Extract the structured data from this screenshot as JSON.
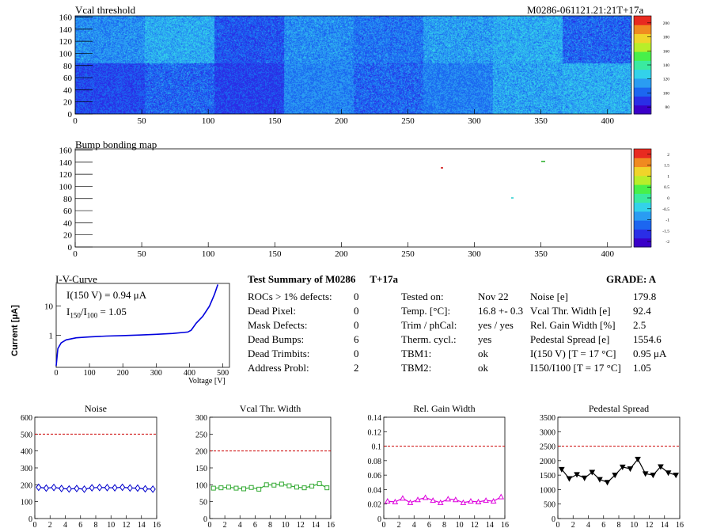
{
  "vcal_map": {
    "title": "Vcal threshold",
    "module_label": "M0286-061121.21:21T+17a",
    "x_ticks": [
      "0",
      "50",
      "100",
      "150",
      "200",
      "250",
      "300",
      "350",
      "400"
    ],
    "y_ticks": [
      "0",
      "20",
      "40",
      "60",
      "80",
      "100",
      "120",
      "140",
      "160"
    ],
    "palette_ticks": [
      "80",
      "100",
      "120",
      "140",
      "160",
      "180",
      "200"
    ]
  },
  "bump_map": {
    "title": "Bump bonding map",
    "x_ticks": [
      "0",
      "50",
      "100",
      "150",
      "200",
      "250",
      "300",
      "350",
      "400"
    ],
    "y_ticks": [
      "0",
      "20",
      "40",
      "60",
      "80",
      "100",
      "120",
      "140",
      "160"
    ],
    "palette_ticks": [
      "-2",
      "-1.5",
      "-1",
      "-0.5",
      "0",
      "0.5",
      "1",
      "1.5",
      "2"
    ]
  },
  "iv_curve": {
    "title": "I-V-Curve",
    "annotation_1": "I(150 V) = 0.94 μA",
    "annotation_2_main": "I",
    "annotation_2_sub1": "150",
    "annotation_2_mid": "/I",
    "annotation_2_sub2": "100",
    "annotation_2_val": "=  1.05",
    "ylabel": "Current [μA]",
    "xlabel": "Voltage [V]",
    "x_ticks": [
      "0",
      "100",
      "200",
      "300",
      "400",
      "500"
    ],
    "y_ticks": [
      "1",
      "10"
    ]
  },
  "summary": {
    "title": "Test Summary of M0286",
    "tag": "T+17a",
    "grade_label": "GRADE:  A",
    "left_rows": [
      {
        "label": "ROCs > 1% defects:",
        "value": "0"
      },
      {
        "label": "Dead Pixel:",
        "value": "0"
      },
      {
        "label": "Mask Defects:",
        "value": "0"
      },
      {
        "label": "Dead Bumps:",
        "value": "6"
      },
      {
        "label": "Dead Trimbits:",
        "value": "0"
      },
      {
        "label": "Address Probl:",
        "value": "2"
      }
    ],
    "mid_rows": [
      {
        "label": "Tested on:",
        "value": "Nov 22"
      },
      {
        "label": "Temp. [°C]:",
        "value": "16.8 +- 0.3"
      },
      {
        "label": "Trim / phCal:",
        "value": "yes / yes"
      },
      {
        "label": "Therm. cycl.:",
        "value": "yes"
      },
      {
        "label": "TBM1:",
        "value": "ok"
      },
      {
        "label": "TBM2:",
        "value": "ok"
      }
    ],
    "right_rows": [
      {
        "label": "Noise [e]",
        "value": "179.8"
      },
      {
        "label": "Vcal Thr. Width [e]",
        "value": "92.4"
      },
      {
        "label": "Rel. Gain Width [%]",
        "value": "2.5"
      },
      {
        "label": "Pedestal Spread [e]",
        "value": "1554.6"
      },
      {
        "label": "I(150 V) [T = 17 °C]",
        "value": "0.95 μA"
      },
      {
        "label": "I150/I100  [T = 17 °C]",
        "value": "1.05"
      }
    ]
  },
  "chart_data": [
    {
      "type": "line",
      "title": "Noise",
      "x": [
        0,
        1,
        2,
        3,
        4,
        5,
        6,
        7,
        8,
        9,
        10,
        11,
        12,
        13,
        14,
        15
      ],
      "values": [
        185,
        180,
        184,
        178,
        175,
        178,
        174,
        182,
        184,
        183,
        182,
        185,
        181,
        180,
        176,
        174
      ],
      "ylim": [
        0,
        600
      ],
      "xlim": [
        0,
        16
      ],
      "threshold": 500,
      "color": "#0000cc",
      "marker": "diamond",
      "y_ticks": [
        "0",
        "100",
        "200",
        "300",
        "400",
        "500",
        "600"
      ],
      "x_ticks": [
        "0",
        "2",
        "4",
        "6",
        "8",
        "10",
        "12",
        "14",
        "16"
      ]
    },
    {
      "type": "line",
      "title": "Vcal Thr. Width",
      "x": [
        0,
        1,
        2,
        3,
        4,
        5,
        6,
        7,
        8,
        9,
        10,
        11,
        12,
        13,
        14,
        15
      ],
      "values": [
        90,
        91,
        93,
        90,
        88,
        92,
        87,
        100,
        99,
        102,
        97,
        93,
        91,
        96,
        103,
        91
      ],
      "ylim": [
        0,
        300
      ],
      "xlim": [
        0,
        16
      ],
      "threshold": 200,
      "color": "#33aa33",
      "marker": "square",
      "y_ticks": [
        "0",
        "50",
        "100",
        "150",
        "200",
        "250",
        "300"
      ],
      "x_ticks": [
        "0",
        "2",
        "4",
        "6",
        "8",
        "10",
        "12",
        "14",
        "16"
      ]
    },
    {
      "type": "line",
      "title": "Rel. Gain Width",
      "x": [
        0,
        1,
        2,
        3,
        4,
        5,
        6,
        7,
        8,
        9,
        10,
        11,
        12,
        13,
        14,
        15
      ],
      "values": [
        0.024,
        0.023,
        0.028,
        0.022,
        0.026,
        0.029,
        0.025,
        0.022,
        0.027,
        0.026,
        0.022,
        0.024,
        0.023,
        0.025,
        0.024,
        0.03
      ],
      "ylim": [
        0,
        0.14
      ],
      "xlim": [
        0,
        16
      ],
      "threshold": 0.1,
      "color": "#dd00dd",
      "marker": "triangle-up",
      "y_ticks": [
        "0",
        "0.02",
        "0.04",
        "0.06",
        "0.08",
        "0.1",
        "0.12",
        "0.14"
      ],
      "x_ticks": [
        "0",
        "2",
        "4",
        "6",
        "8",
        "10",
        "12",
        "14",
        "16"
      ]
    },
    {
      "type": "line",
      "title": "Pedestal Spread",
      "x": [
        0,
        1,
        2,
        3,
        4,
        5,
        6,
        7,
        8,
        9,
        10,
        11,
        12,
        13,
        14,
        15
      ],
      "values": [
        1700,
        1380,
        1520,
        1400,
        1600,
        1350,
        1250,
        1500,
        1780,
        1720,
        2050,
        1550,
        1500,
        1790,
        1580,
        1500
      ],
      "ylim": [
        0,
        3500
      ],
      "xlim": [
        0,
        16
      ],
      "threshold": 2500,
      "color": "#000000",
      "marker": "triangle-down",
      "y_ticks": [
        "0",
        "500",
        "1000",
        "1500",
        "2000",
        "2500",
        "3000",
        "3500"
      ],
      "x_ticks": [
        "0",
        "2",
        "4",
        "6",
        "8",
        "10",
        "12",
        "14",
        "16"
      ]
    }
  ]
}
